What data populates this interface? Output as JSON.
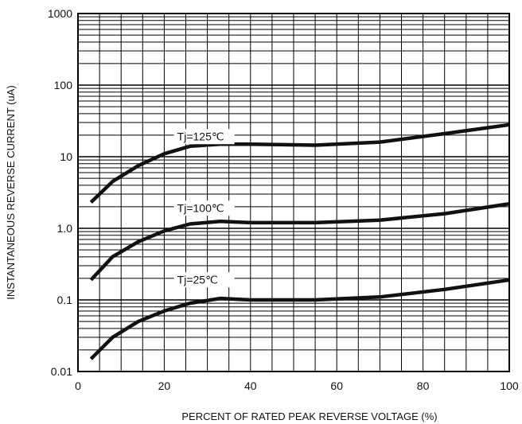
{
  "chart_data": {
    "type": "line",
    "xlabel": "PERCENT OF RATED PEAK REVERSE VOLTAGE (%)",
    "ylabel": "INSTANTANEOUS REVERSE  CURRENT (uA)",
    "xlim": [
      0,
      100
    ],
    "ylim": [
      0.01,
      1000
    ],
    "yscale": "log",
    "grid": true,
    "x_ticks": [
      0,
      20,
      40,
      60,
      80,
      100
    ],
    "x_tick_labels": [
      "0",
      "20",
      "40",
      "60",
      "80",
      "100"
    ],
    "y_ticks": [
      0.01,
      0.1,
      1,
      10,
      100,
      1000
    ],
    "y_tick_labels": [
      "0.01",
      "0.1",
      "1.0",
      "10",
      "100",
      "1000"
    ],
    "series": [
      {
        "name": "Tj=125℃",
        "label_at": [
          23,
          17
        ],
        "x": [
          3,
          8,
          14,
          20,
          26,
          33,
          40,
          55,
          70,
          85,
          100
        ],
        "y": [
          2.3,
          4.5,
          7.5,
          11,
          14,
          15,
          15,
          14.5,
          16,
          21,
          28
        ]
      },
      {
        "name": "Tj=100℃",
        "label_at": [
          23,
          1.7
        ],
        "x": [
          3,
          8,
          14,
          20,
          26,
          33,
          40,
          55,
          70,
          85,
          100
        ],
        "y": [
          0.19,
          0.4,
          0.65,
          0.92,
          1.15,
          1.25,
          1.2,
          1.2,
          1.3,
          1.6,
          2.2
        ]
      },
      {
        "name": "Tj=25℃",
        "label_at": [
          23,
          0.17
        ],
        "x": [
          3,
          8,
          14,
          20,
          26,
          33,
          40,
          55,
          70,
          85,
          100
        ],
        "y": [
          0.015,
          0.03,
          0.05,
          0.07,
          0.09,
          0.105,
          0.1,
          0.1,
          0.11,
          0.14,
          0.19
        ]
      }
    ]
  }
}
